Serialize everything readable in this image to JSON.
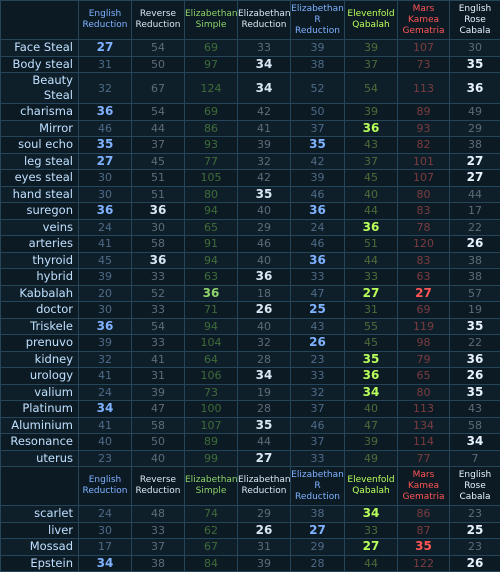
{
  "columns": [
    {
      "label": "English Reduction",
      "color": "#7fb2ff",
      "dim": "#4e6a86"
    },
    {
      "label": "Reverse Reduction",
      "color": "#d9e7f4",
      "dim": "#5d6b78"
    },
    {
      "label": "Elizabethan Simple",
      "color": "#8fd36a",
      "dim": "#3f6b39"
    },
    {
      "label": "Elizabethan Reduction",
      "color": "#d9e7f4",
      "dim": "#5d6b78"
    },
    {
      "label": "Elizabethan R Reduction",
      "color": "#7fb2ff",
      "dim": "#4e6a86"
    },
    {
      "label": "Elevenfold Qabalah",
      "color": "#b8ff5a",
      "dim": "#4f6b39"
    },
    {
      "label": "Mars Kamea Gematria",
      "color": "#ff5555",
      "dim": "#7a3c3f"
    },
    {
      "label": "English Rose Cabala",
      "color": "#e8f2ff",
      "dim": "#5d6b78"
    }
  ],
  "rows": [
    {
      "word": "Face Steal",
      "values": [
        27,
        54,
        69,
        33,
        39,
        39,
        107,
        30
      ],
      "hl": [
        true,
        false,
        false,
        false,
        false,
        false,
        false,
        false
      ]
    },
    {
      "word": "Body steal",
      "values": [
        31,
        50,
        97,
        34,
        38,
        37,
        73,
        35
      ],
      "hl": [
        false,
        false,
        false,
        true,
        false,
        false,
        false,
        true
      ]
    },
    {
      "word": "Beauty Steal",
      "values": [
        32,
        67,
        124,
        34,
        52,
        54,
        113,
        36
      ],
      "hl": [
        false,
        false,
        false,
        true,
        false,
        false,
        false,
        true
      ]
    },
    {
      "word": "charisma",
      "values": [
        36,
        54,
        69,
        42,
        50,
        39,
        89,
        49
      ],
      "hl": [
        true,
        false,
        false,
        false,
        false,
        false,
        false,
        false
      ]
    },
    {
      "word": "Mirror",
      "values": [
        46,
        44,
        86,
        41,
        37,
        36,
        93,
        29
      ],
      "hl": [
        false,
        false,
        false,
        false,
        false,
        true,
        false,
        false
      ]
    },
    {
      "word": "soul echo",
      "values": [
        35,
        37,
        93,
        39,
        35,
        43,
        82,
        38
      ],
      "hl": [
        true,
        false,
        false,
        false,
        true,
        false,
        false,
        false
      ]
    },
    {
      "word": "leg steal",
      "values": [
        27,
        45,
        77,
        32,
        42,
        37,
        101,
        27
      ],
      "hl": [
        true,
        false,
        false,
        false,
        false,
        false,
        false,
        true
      ]
    },
    {
      "word": "eyes steal",
      "values": [
        30,
        51,
        105,
        42,
        39,
        45,
        107,
        27
      ],
      "hl": [
        false,
        false,
        false,
        false,
        false,
        false,
        false,
        true
      ]
    },
    {
      "word": "hand steal",
      "values": [
        30,
        51,
        80,
        35,
        46,
        40,
        80,
        44
      ],
      "hl": [
        false,
        false,
        false,
        true,
        false,
        false,
        false,
        false
      ]
    },
    {
      "word": "suregon",
      "values": [
        36,
        36,
        94,
        40,
        36,
        44,
        83,
        17
      ],
      "hl": [
        true,
        true,
        false,
        false,
        true,
        false,
        false,
        false
      ]
    },
    {
      "word": "veins",
      "values": [
        24,
        30,
        65,
        29,
        24,
        36,
        78,
        22
      ],
      "hl": [
        false,
        false,
        false,
        false,
        false,
        true,
        false,
        false
      ]
    },
    {
      "word": "arteries",
      "values": [
        41,
        58,
        91,
        46,
        46,
        51,
        120,
        26
      ],
      "hl": [
        false,
        false,
        false,
        false,
        false,
        false,
        false,
        true
      ]
    },
    {
      "word": "thyroid",
      "values": [
        45,
        36,
        94,
        40,
        36,
        44,
        83,
        38
      ],
      "hl": [
        false,
        true,
        false,
        false,
        true,
        false,
        false,
        false
      ]
    },
    {
      "word": "hybrid",
      "values": [
        39,
        33,
        63,
        36,
        33,
        33,
        63,
        38
      ],
      "hl": [
        false,
        false,
        false,
        true,
        false,
        false,
        false,
        false
      ]
    },
    {
      "word": "Kabbalah",
      "values": [
        20,
        52,
        36,
        18,
        47,
        27,
        27,
        57
      ],
      "hl": [
        false,
        false,
        true,
        false,
        false,
        true,
        true,
        false
      ]
    },
    {
      "word": "doctor",
      "values": [
        30,
        33,
        71,
        26,
        25,
        31,
        69,
        19
      ],
      "hl": [
        false,
        false,
        false,
        true,
        true,
        false,
        false,
        false
      ]
    },
    {
      "word": "Triskele",
      "values": [
        36,
        54,
        94,
        40,
        43,
        55,
        119,
        35
      ],
      "hl": [
        true,
        false,
        false,
        false,
        false,
        false,
        false,
        true
      ]
    },
    {
      "word": "prenuvo",
      "values": [
        39,
        33,
        104,
        32,
        26,
        45,
        98,
        22
      ],
      "hl": [
        false,
        false,
        false,
        false,
        true,
        false,
        false,
        false
      ]
    },
    {
      "word": "kidney",
      "values": [
        32,
        41,
        64,
        28,
        23,
        35,
        79,
        36
      ],
      "hl": [
        false,
        false,
        false,
        false,
        false,
        true,
        false,
        true
      ]
    },
    {
      "word": "urology",
      "values": [
        41,
        31,
        106,
        34,
        33,
        36,
        65,
        26
      ],
      "hl": [
        false,
        false,
        false,
        true,
        false,
        true,
        false,
        true
      ]
    },
    {
      "word": "valium",
      "values": [
        24,
        39,
        73,
        19,
        32,
        34,
        80,
        35
      ],
      "hl": [
        false,
        false,
        false,
        false,
        false,
        true,
        false,
        true
      ]
    },
    {
      "word": "Platinum",
      "values": [
        34,
        47,
        100,
        28,
        37,
        40,
        113,
        43
      ],
      "hl": [
        true,
        false,
        false,
        false,
        false,
        false,
        false,
        false
      ]
    },
    {
      "word": "Aluminium",
      "values": [
        41,
        58,
        107,
        35,
        46,
        47,
        134,
        58
      ],
      "hl": [
        false,
        false,
        false,
        true,
        false,
        false,
        false,
        false
      ]
    },
    {
      "word": "Resonance",
      "values": [
        40,
        50,
        89,
        44,
        37,
        39,
        114,
        34
      ],
      "hl": [
        false,
        false,
        false,
        false,
        false,
        false,
        false,
        true
      ]
    },
    {
      "word": "uterus",
      "values": [
        23,
        40,
        99,
        27,
        33,
        49,
        77,
        7
      ],
      "hl": [
        false,
        false,
        false,
        true,
        false,
        false,
        false,
        false
      ]
    }
  ],
  "rows2": [
    {
      "word": "scarlet",
      "values": [
        24,
        48,
        74,
        29,
        38,
        34,
        86,
        23
      ],
      "hl": [
        false,
        false,
        false,
        false,
        false,
        true,
        false,
        false
      ]
    },
    {
      "word": "liver",
      "values": [
        30,
        33,
        62,
        26,
        27,
        33,
        87,
        25
      ],
      "hl": [
        false,
        false,
        false,
        true,
        true,
        false,
        false,
        true
      ]
    },
    {
      "word": "Mossad",
      "values": [
        17,
        37,
        67,
        31,
        29,
        27,
        35,
        23
      ],
      "hl": [
        false,
        false,
        false,
        false,
        false,
        true,
        true,
        false
      ]
    },
    {
      "word": "Epstein",
      "values": [
        34,
        38,
        84,
        39,
        28,
        44,
        122,
        26
      ],
      "hl": [
        true,
        false,
        false,
        false,
        false,
        false,
        false,
        true
      ]
    }
  ]
}
